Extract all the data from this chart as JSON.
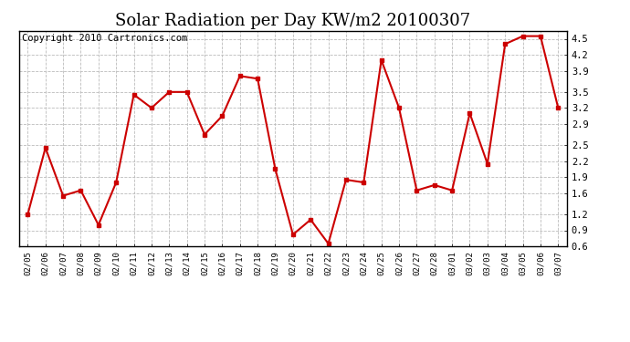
{
  "title": "Solar Radiation per Day KW/m2 20100307",
  "copyright": "Copyright 2010 Cartronics.com",
  "dates": [
    "02/05",
    "02/06",
    "02/07",
    "02/08",
    "02/09",
    "02/10",
    "02/11",
    "02/12",
    "02/13",
    "02/14",
    "02/15",
    "02/16",
    "02/17",
    "02/18",
    "02/19",
    "02/20",
    "02/21",
    "02/22",
    "02/23",
    "02/24",
    "02/25",
    "02/26",
    "02/27",
    "02/28",
    "03/01",
    "03/02",
    "03/03",
    "03/04",
    "03/05",
    "03/06",
    "03/07"
  ],
  "values": [
    1.2,
    2.45,
    1.55,
    1.65,
    1.0,
    1.8,
    3.45,
    3.2,
    3.5,
    3.5,
    2.7,
    3.05,
    3.8,
    3.75,
    2.05,
    0.82,
    1.1,
    0.65,
    1.85,
    1.8,
    4.1,
    3.2,
    1.65,
    1.75,
    1.65,
    3.1,
    2.15,
    4.4,
    4.55,
    4.55,
    3.2
  ],
  "line_color": "#cc0000",
  "marker": "s",
  "marker_size": 2.5,
  "ylim": [
    0.6,
    4.65
  ],
  "yticks": [
    0.6,
    0.9,
    1.2,
    1.6,
    1.9,
    2.2,
    2.5,
    2.9,
    3.2,
    3.5,
    3.9,
    4.2,
    4.5
  ],
  "bg_color": "#ffffff",
  "plot_bg_color": "#ffffff",
  "grid_color": "#bbbbbb",
  "title_fontsize": 13,
  "copyright_fontsize": 7.5
}
